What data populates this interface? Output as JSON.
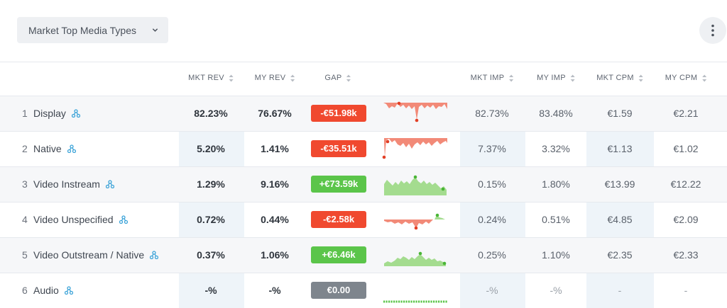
{
  "toolbar": {
    "dropdown_label": "Market Top Media Types",
    "chevron_icon": "chevron-down-icon",
    "menu_icon": "more-vertical-icon"
  },
  "columns": {
    "mkt_rev": "MKT REV",
    "my_rev": "MY REV",
    "gap": "GAP",
    "mkt_imp": "MKT IMP",
    "my_imp": "MY IMP",
    "mkt_cpm": "MKT CPM",
    "my_cpm": "MY CPM"
  },
  "colors": {
    "negative": "#f0492f",
    "positive": "#5bc54a",
    "neutral": "#7e858d",
    "spark_negative": "#f28a78",
    "spark_positive": "#a4dc8f",
    "link_icon": "#3ba3d8"
  },
  "rows": [
    {
      "rank": "1",
      "name": "Display",
      "mkt_rev": "82.23%",
      "my_rev": "76.67%",
      "gap": "-€51.98k",
      "gap_sign": "neg",
      "mkt_imp": "82.73%",
      "my_imp": "83.48%",
      "mkt_cpm": "€1.59",
      "my_cpm": "€2.21"
    },
    {
      "rank": "2",
      "name": "Native",
      "mkt_rev": "5.20%",
      "my_rev": "1.41%",
      "gap": "-€35.51k",
      "gap_sign": "neg",
      "mkt_imp": "7.37%",
      "my_imp": "3.32%",
      "mkt_cpm": "€1.13",
      "my_cpm": "€1.02"
    },
    {
      "rank": "3",
      "name": "Video Instream",
      "mkt_rev": "1.29%",
      "my_rev": "9.16%",
      "gap": "+€73.59k",
      "gap_sign": "pos",
      "mkt_imp": "0.15%",
      "my_imp": "1.80%",
      "mkt_cpm": "€13.99",
      "my_cpm": "€12.22"
    },
    {
      "rank": "4",
      "name": "Video Unspecified",
      "mkt_rev": "0.72%",
      "my_rev": "0.44%",
      "gap": "-€2.58k",
      "gap_sign": "neg",
      "mkt_imp": "0.24%",
      "my_imp": "0.51%",
      "mkt_cpm": "€4.85",
      "my_cpm": "€2.09"
    },
    {
      "rank": "5",
      "name": "Video Outstream / Native",
      "mkt_rev": "0.37%",
      "my_rev": "1.06%",
      "gap": "+€6.46k",
      "gap_sign": "pos",
      "mkt_imp": "0.25%",
      "my_imp": "1.10%",
      "mkt_cpm": "€2.35",
      "my_cpm": "€2.33"
    },
    {
      "rank": "6",
      "name": "Audio",
      "mkt_rev": "-%",
      "my_rev": "-%",
      "gap": "€0.00",
      "gap_sign": "zero",
      "mkt_imp": "-%",
      "my_imp": "-%",
      "mkt_cpm": "-",
      "my_cpm": "-"
    }
  ]
}
